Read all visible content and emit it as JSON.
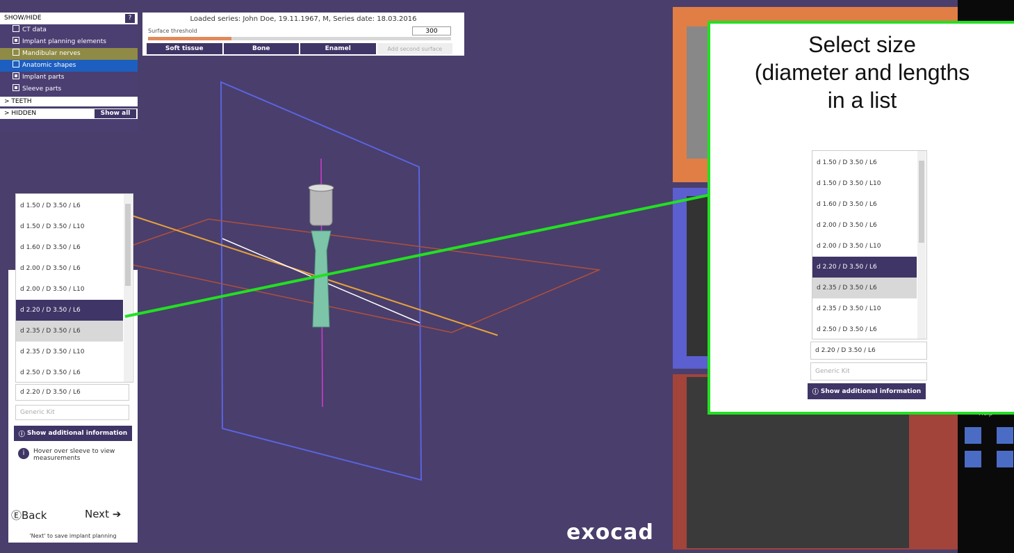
{
  "show_hide": {
    "header": "SHOW/HIDE",
    "help": "?",
    "items": [
      "CT data",
      "Implant planning elements",
      "Mandibular nerves",
      "Anatomic shapes",
      "Implant parts",
      "Sleeve parts"
    ],
    "teeth": "TEETH",
    "hidden": "HIDDEN",
    "show_all": "Show all"
  },
  "series_panel": {
    "title": "Loaded series: John Doe, 19.11.1967, M, Series date: 18.03.2016",
    "threshold_label": "Surface threshold",
    "threshold_value": "300",
    "buttons": [
      "Soft tissue",
      "Bone",
      "Enamel",
      "Add second surface"
    ]
  },
  "size_selector": {
    "options": [
      "d 1.50 / D 3.50 / L6",
      "d 1.50 / D 3.50 / L10",
      "d 1.60 / D 3.50 / L6",
      "d 2.00 / D 3.50 / L6",
      "d 2.00 / D 3.50 / L10",
      "d 2.20 / D 3.50 / L6",
      "d 2.35 / D 3.50 / L6",
      "d 2.35 / D 3.50 / L10",
      "d 2.50 / D 3.50 / L6"
    ],
    "selected": "d 2.20 / D 3.50 / L6",
    "kit": "Generic Kit",
    "info_button": "Show additional information",
    "hint": "Hover over sleeve to view measurements",
    "back": "Back",
    "next": "Next",
    "caption": "'Next' to save implant planning"
  },
  "callout": {
    "lines": [
      "Select size",
      "(diameter and lengths",
      "in a list"
    ]
  },
  "logo": "exocad",
  "help": "Help"
}
